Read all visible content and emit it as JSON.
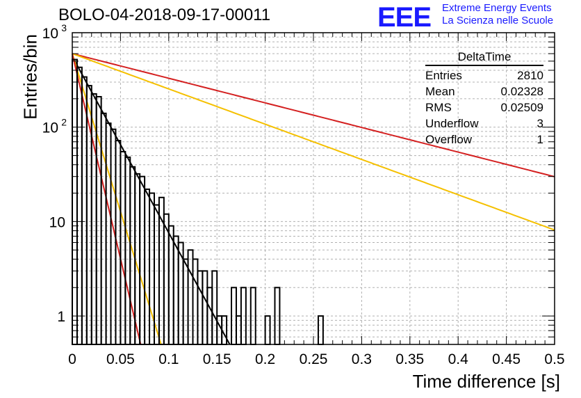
{
  "chart_data": {
    "type": "histogram",
    "title": "BOLO-04-2018-09-17-00011",
    "xlabel": "Time difference [s]",
    "ylabel": "Entries/bin",
    "xlim": [
      0,
      0.5
    ],
    "ylim": [
      0.5,
      1000
    ],
    "yscale": "log",
    "grid": true,
    "bin_width": 0.005,
    "histogram": {
      "name": "DeltaTime",
      "color": "#000000",
      "bin_centers": [
        0.0025,
        0.0075,
        0.0125,
        0.0175,
        0.0225,
        0.0275,
        0.0325,
        0.0375,
        0.0425,
        0.0475,
        0.0525,
        0.0575,
        0.0625,
        0.0675,
        0.0725,
        0.0775,
        0.0825,
        0.0875,
        0.0925,
        0.0975,
        0.1025,
        0.1075,
        0.1125,
        0.1175,
        0.1225,
        0.1275,
        0.1325,
        0.1375,
        0.1425,
        0.1475,
        0.1525,
        0.1575,
        0.1625,
        0.1675,
        0.1725,
        0.1775,
        0.1825,
        0.1875,
        0.1925,
        0.1975,
        0.2025,
        0.2075,
        0.2125,
        0.2175,
        0.2225,
        0.2275,
        0.2325,
        0.2375,
        0.2425,
        0.2475,
        0.2525,
        0.2575,
        0.2625
      ],
      "counts": [
        520,
        430,
        340,
        275,
        225,
        210,
        140,
        110,
        95,
        72,
        55,
        48,
        38,
        32,
        30,
        22,
        20,
        15,
        18,
        12,
        9,
        7,
        6,
        4,
        5,
        4,
        3,
        3,
        2,
        3,
        1,
        1,
        0,
        2,
        1,
        2,
        0,
        2,
        0,
        0,
        1,
        0,
        2,
        0,
        0,
        0,
        0,
        0,
        0,
        0,
        0,
        1,
        0
      ]
    },
    "curves": [
      {
        "color": "#d42020",
        "x0": 0,
        "y0": 600,
        "decay_per_s": 6.0
      },
      {
        "color": "#f5c000",
        "x0": 0,
        "y0": 600,
        "decay_per_s": 8.6
      },
      {
        "color": "#000000",
        "x0": 0,
        "y0": 560,
        "decay_per_s": 43.0
      },
      {
        "color": "#f5c000",
        "x0": 0,
        "y0": 600,
        "decay_per_s": 77.0
      },
      {
        "color": "#d42020",
        "x0": 0,
        "y0": 600,
        "decay_per_s": 100.0
      }
    ],
    "x_ticks": [
      "0",
      "0.05",
      "0.1",
      "0.15",
      "0.2",
      "0.25",
      "0.3",
      "0.35",
      "0.4",
      "0.45",
      "0.5"
    ],
    "y_ticks": [
      "1",
      "10",
      "10",
      "10"
    ],
    "y_tick_exponents": [
      "",
      "",
      "2",
      "3"
    ]
  },
  "stats_box": {
    "name": "DeltaTime",
    "rows": [
      {
        "label": "Entries",
        "value": "2810"
      },
      {
        "label": "Mean",
        "value": "0.02328"
      },
      {
        "label": "RMS",
        "value": "0.02509"
      },
      {
        "label": "Underflow",
        "value": "3"
      },
      {
        "label": "Overflow",
        "value": "1"
      }
    ]
  },
  "logo": {
    "mark": "EEE",
    "line1": "Extreme Energy Events",
    "line2": "La Scienza nelle Scuole",
    "color": "#1a1aff"
  }
}
